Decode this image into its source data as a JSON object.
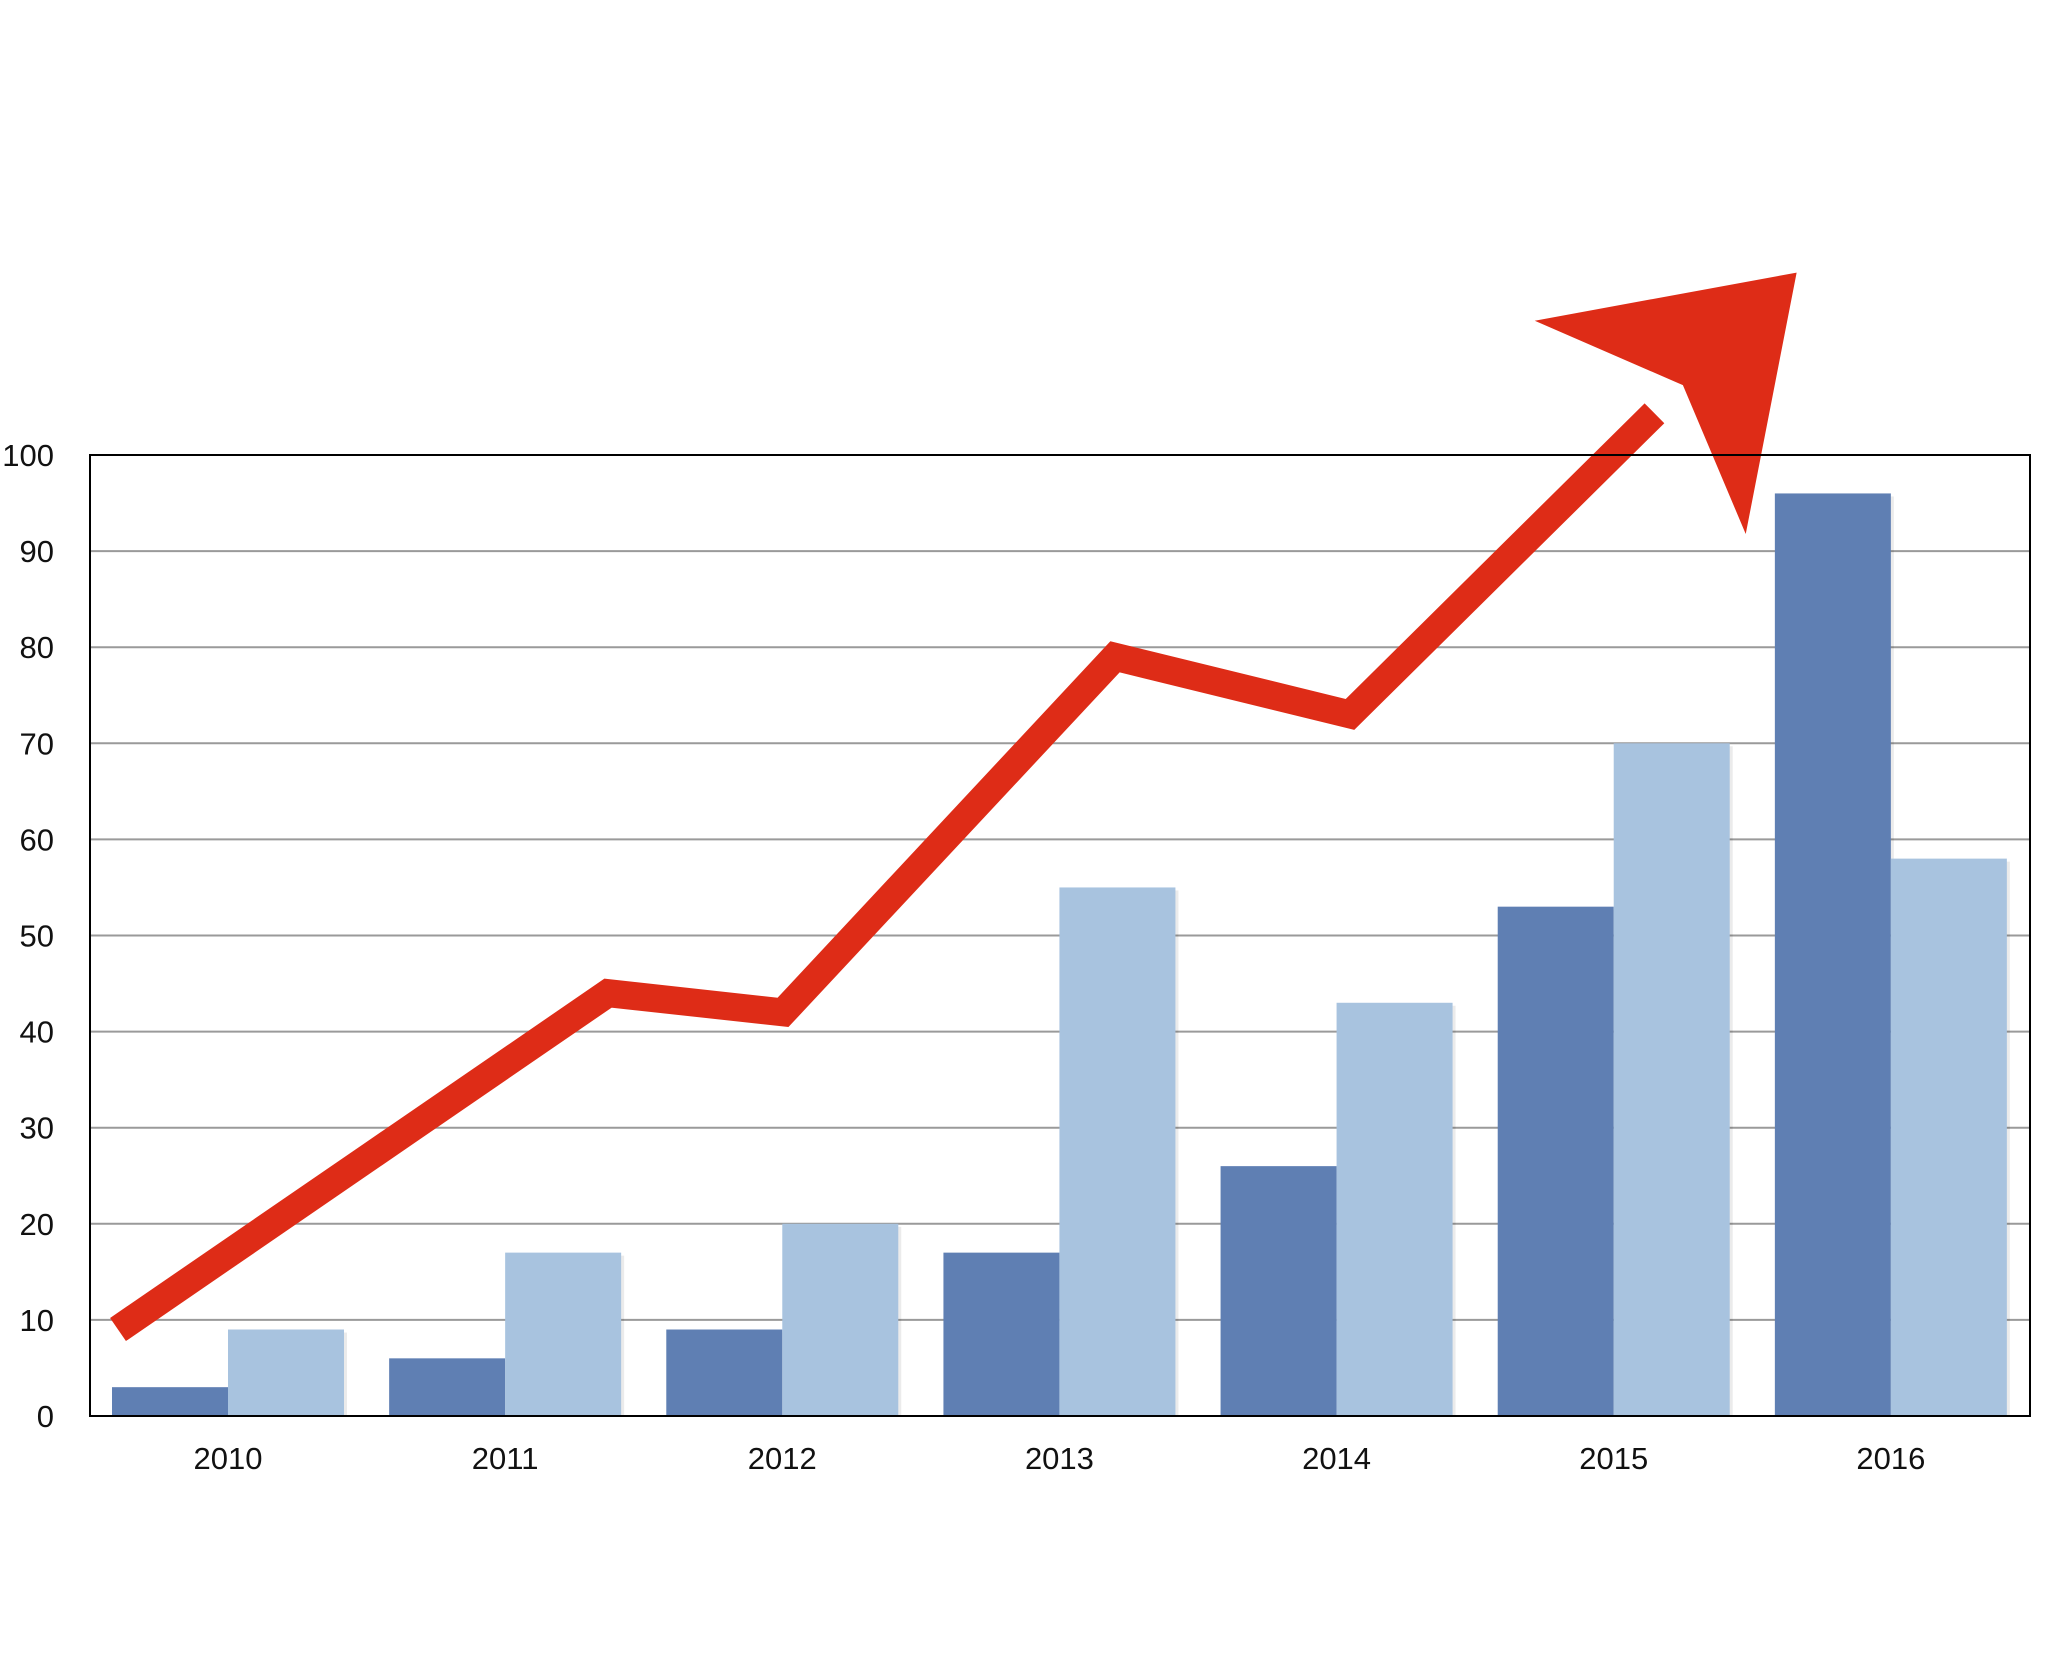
{
  "chart_data": {
    "type": "bar",
    "categories": [
      "2010",
      "2011",
      "2012",
      "2013",
      "2014",
      "2015",
      "2016"
    ],
    "series": [
      {
        "values": [
          3,
          6,
          9,
          17,
          26,
          53,
          96
        ],
        "color": "#5f7fb3"
      },
      {
        "values": [
          9,
          17,
          20,
          55,
          43,
          70,
          58
        ],
        "color": "#a8c3df"
      }
    ],
    "trend_arrow": {
      "values": [
        9,
        44,
        42,
        79,
        73,
        108
      ],
      "color": "#de2c17",
      "direction": "up"
    },
    "yticks": [
      "0",
      "10",
      "20",
      "30",
      "40",
      "50",
      "60",
      "70",
      "80",
      "90",
      "100"
    ],
    "ylim": [
      0,
      100
    ],
    "grid": true,
    "legend": "none",
    "title": "",
    "xlabel": "",
    "ylabel": ""
  }
}
